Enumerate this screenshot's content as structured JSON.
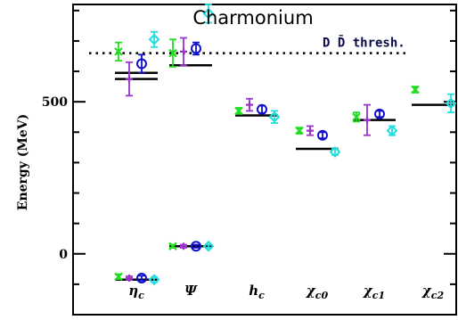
{
  "chart_data": {
    "type": "scatter",
    "title": "Charmonium",
    "ylabel": "Energy (MeV)",
    "ylim": [
      -200,
      820
    ],
    "yticks": [
      0,
      500
    ],
    "ytick_labels": [
      "0",
      "500"
    ],
    "categories": [
      "ηc",
      "Ψ",
      "hc",
      "χc0",
      "χc1",
      "χc2"
    ],
    "category_labels": [
      {
        "main": "η",
        "sub": "c"
      },
      {
        "main": "Ψ",
        "sub": ""
      },
      {
        "main": "h",
        "sub": "c"
      },
      {
        "main": "χ",
        "sub": "c0"
      },
      {
        "main": "χ",
        "sub": "c1"
      },
      {
        "main": "χ",
        "sub": "c2"
      }
    ],
    "threshold": {
      "label": "D D̄ thresh.",
      "value": 660
    },
    "experiment_levels": [
      {
        "category": "ηc",
        "value": -85
      },
      {
        "category": "ηc",
        "value": 575
      },
      {
        "category": "ηc",
        "value": 595
      },
      {
        "category": "Ψ",
        "value": 25
      },
      {
        "category": "Ψ",
        "value": 620
      },
      {
        "category": "hc",
        "value": 455
      },
      {
        "category": "χc0",
        "value": 345
      },
      {
        "category": "χc1",
        "value": 440
      },
      {
        "category": "χc2",
        "value": 490
      }
    ],
    "series": [
      {
        "name": "green",
        "color": "#22dd22",
        "marker": "x",
        "points": [
          {
            "category": "ηc",
            "y": -75,
            "err": 8
          },
          {
            "category": "ηc",
            "y": 665,
            "err": 30
          },
          {
            "category": "Ψ",
            "y": 25,
            "err": 5
          },
          {
            "category": "Ψ",
            "y": 660,
            "err": 45
          },
          {
            "category": "hc",
            "y": 470,
            "err": 10
          },
          {
            "category": "χc0",
            "y": 405,
            "err": 10
          },
          {
            "category": "χc1",
            "y": 450,
            "err": 15
          },
          {
            "category": "χc2",
            "y": 540,
            "err": 10
          }
        ]
      },
      {
        "name": "purple",
        "color": "#9933cc",
        "marker": "plus",
        "points": [
          {
            "category": "ηc",
            "y": -80,
            "err": 6
          },
          {
            "category": "ηc",
            "y": 575,
            "err": 55
          },
          {
            "category": "Ψ",
            "y": 25,
            "err": 5
          },
          {
            "category": "Ψ",
            "y": 665,
            "err": 45
          },
          {
            "category": "hc",
            "y": 490,
            "err": 20
          },
          {
            "category": "χc0",
            "y": 405,
            "err": 15
          },
          {
            "category": "χc1",
            "y": 440,
            "err": 50
          }
        ]
      },
      {
        "name": "blue",
        "color": "#1111cc",
        "marker": "circle",
        "points": [
          {
            "category": "ηc",
            "y": -80,
            "err": 8
          },
          {
            "category": "ηc",
            "y": 625,
            "err": 30
          },
          {
            "category": "Ψ",
            "y": 25,
            "err": 5
          },
          {
            "category": "Ψ",
            "y": 675,
            "err": 20
          },
          {
            "category": "hc",
            "y": 475,
            "err": 12
          },
          {
            "category": "χc0",
            "y": 390,
            "err": 10
          },
          {
            "category": "χc1",
            "y": 460,
            "err": 10
          }
        ]
      },
      {
        "name": "cyan",
        "color": "#22dddd",
        "marker": "diamond",
        "points": [
          {
            "category": "ηc",
            "y": -85,
            "err": 8
          },
          {
            "category": "ηc",
            "y": 705,
            "err": 25
          },
          {
            "category": "Ψ",
            "y": 25,
            "err": 5
          },
          {
            "category": "Ψ",
            "y": 790,
            "err": 30
          },
          {
            "category": "hc",
            "y": 450,
            "err": 20
          },
          {
            "category": "χc0",
            "y": 335,
            "err": 10
          },
          {
            "category": "χc1",
            "y": 405,
            "err": 15
          },
          {
            "category": "χc2",
            "y": 495,
            "err": 30
          }
        ]
      }
    ],
    "grid": false,
    "legend": "none"
  }
}
